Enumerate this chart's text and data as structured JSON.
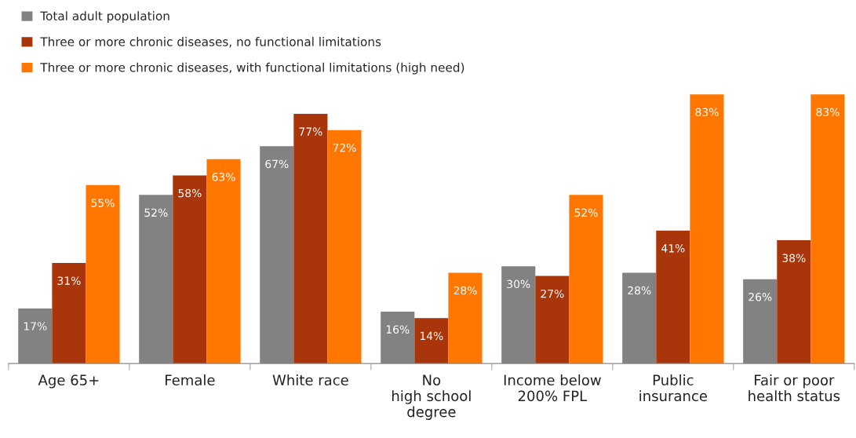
{
  "chart_data": {
    "type": "bar",
    "categories": [
      "Age 65+",
      "Female",
      "White race",
      "No\nhigh school\ndegree",
      "Income below\n200% FPL",
      "Public\ninsurance",
      "Fair or poor\nhealth status"
    ],
    "series": [
      {
        "name": "Total adult population",
        "color": "#828282",
        "values": [
          17,
          52,
          67,
          16,
          30,
          28,
          26
        ],
        "value_labels": [
          "17%",
          "52%",
          "67%",
          "16%",
          "30%",
          "28%",
          "26%"
        ]
      },
      {
        "name": "Three or more chronic diseases, no functional limitations",
        "color": "#a9350a",
        "values": [
          31,
          58,
          77,
          14,
          27,
          41,
          38
        ],
        "value_labels": [
          "31%",
          "58%",
          "77%",
          "14%",
          "27%",
          "41%",
          "38%"
        ]
      },
      {
        "name": "Three or more chronic diseases, with functional limitations (high need)",
        "color": "#ff7700",
        "values": [
          55,
          63,
          72,
          28,
          52,
          83,
          83
        ],
        "value_labels": [
          "55%",
          "63%",
          "72%",
          "28%",
          "52%",
          "83%",
          "83%"
        ]
      }
    ],
    "legend": "top left",
    "grid": false
  }
}
